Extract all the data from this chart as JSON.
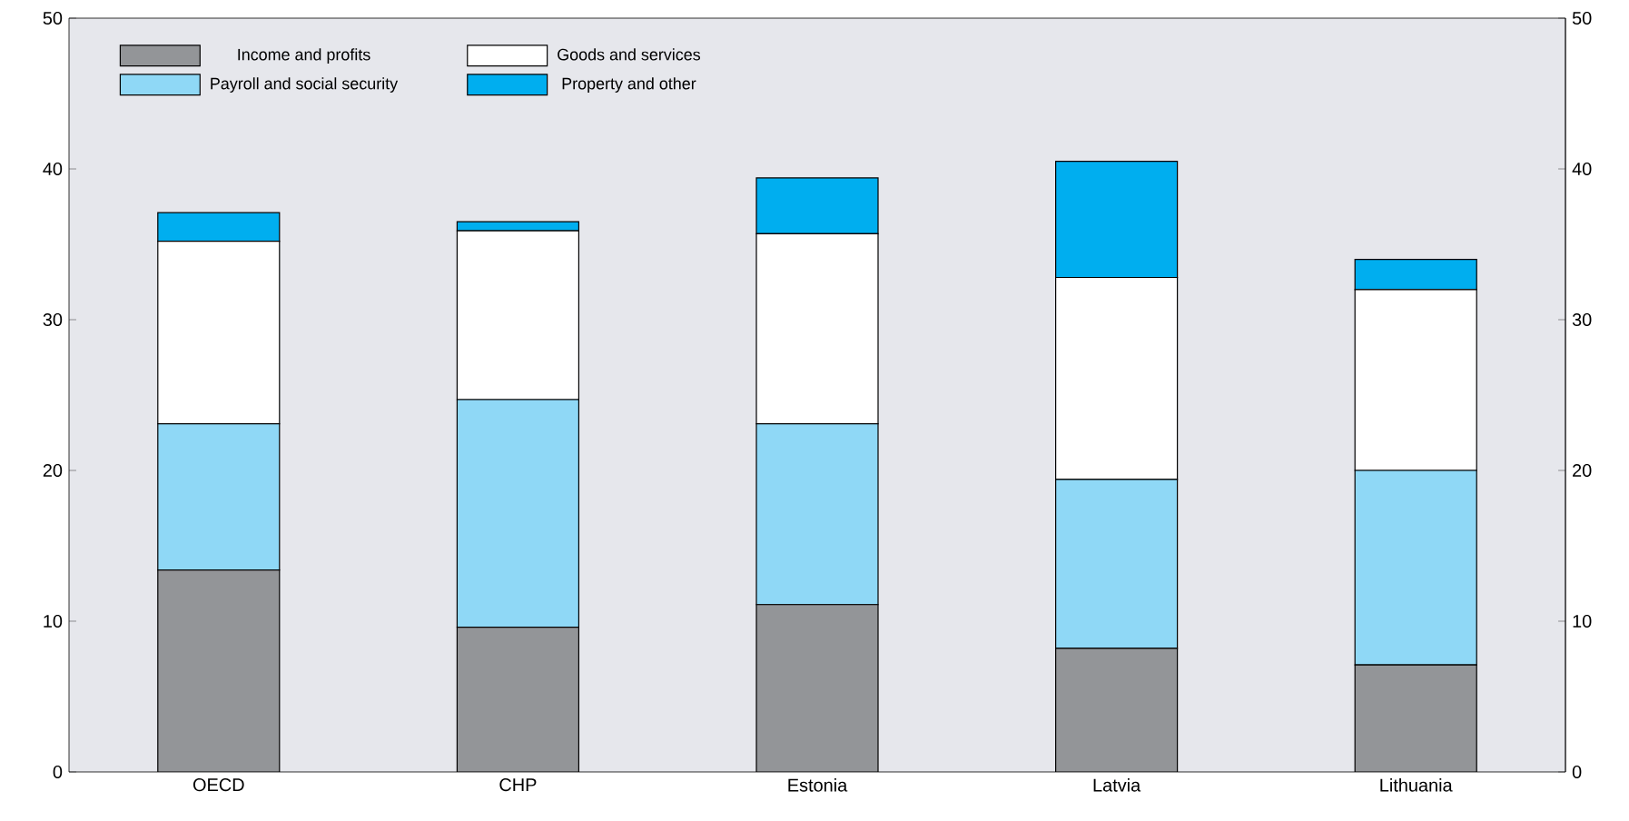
{
  "chart_data": {
    "type": "bar",
    "stacked": true,
    "categories": [
      "OECD",
      "CHP",
      "Estonia",
      "Latvia",
      "Lithuania"
    ],
    "series": [
      {
        "name": "Income and profits",
        "color": "#939598",
        "values": [
          13.4,
          9.6,
          11.1,
          8.2,
          7.1
        ]
      },
      {
        "name": "Payroll and social security",
        "color": "#8fd8f6",
        "values": [
          9.7,
          15.1,
          12.0,
          11.2,
          12.9
        ]
      },
      {
        "name": "Goods and services",
        "color": "#ffffff",
        "values": [
          12.1,
          11.2,
          12.6,
          13.4,
          12.0
        ]
      },
      {
        "name": "Property and other",
        "color": "#00aeef",
        "values": [
          1.9,
          0.6,
          3.7,
          7.7,
          2.0
        ]
      }
    ],
    "ylim": [
      0,
      50
    ],
    "yticks": [
      0,
      10,
      20,
      30,
      40,
      50
    ],
    "y2lim": [
      0,
      50
    ],
    "y2ticks": [
      0,
      10,
      20,
      30,
      40,
      50
    ],
    "grid": false,
    "legend": "top left"
  }
}
